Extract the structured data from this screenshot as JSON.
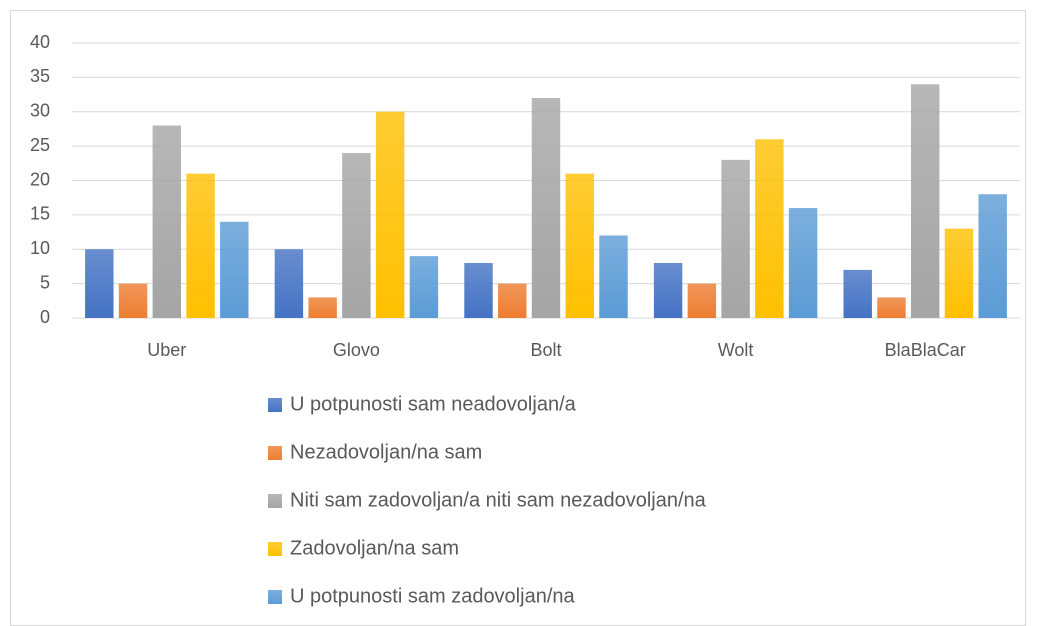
{
  "chart_data": {
    "type": "bar",
    "categories": [
      "Uber",
      "Glovo",
      "Bolt",
      "Wolt",
      "BlaBlaCar"
    ],
    "series": [
      {
        "name": "U potpunosti sam neadovoljan/a",
        "color": "#4472c4",
        "values": [
          10,
          10,
          8,
          8,
          7
        ]
      },
      {
        "name": "Nezadovoljan/na sam",
        "color": "#ed7d31",
        "values": [
          5,
          3,
          5,
          5,
          3
        ]
      },
      {
        "name": "Niti sam zadovoljan/a niti sam nezadovoljan/na",
        "color": "#a5a5a5",
        "values": [
          28,
          24,
          32,
          23,
          34
        ]
      },
      {
        "name": "Zadovoljan/na sam",
        "color": "#ffc000",
        "values": [
          21,
          30,
          21,
          26,
          13
        ]
      },
      {
        "name": "U potpunosti sam zadovoljan/na",
        "color": "#5b9bd5",
        "values": [
          14,
          9,
          12,
          16,
          18
        ]
      }
    ],
    "ylim": [
      0,
      40
    ],
    "yticks": [
      0,
      5,
      10,
      15,
      20,
      25,
      30,
      35,
      40
    ],
    "grid": true,
    "legend": "bottom"
  }
}
